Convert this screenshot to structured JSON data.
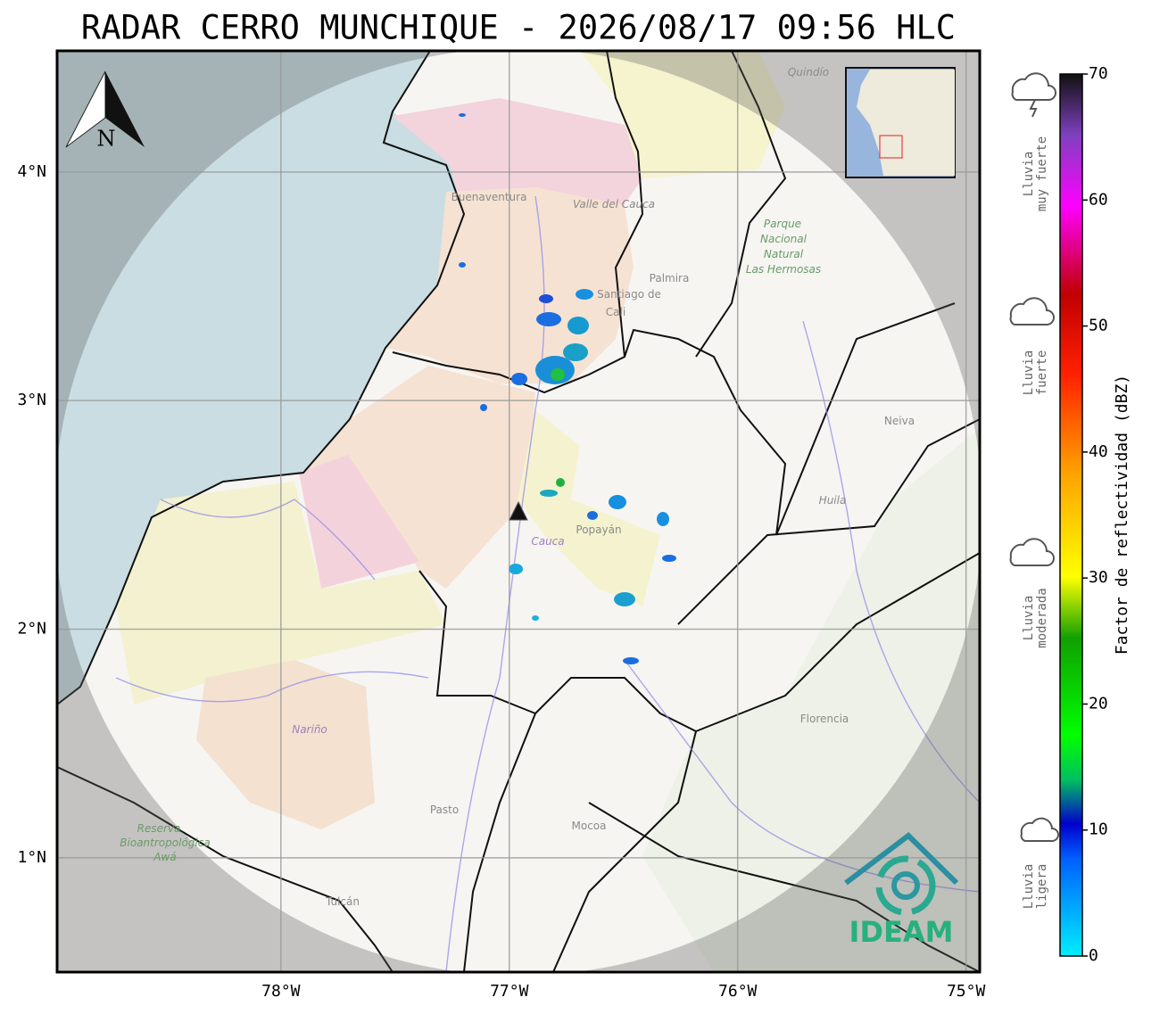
{
  "title": "RADAR CERRO MUNCHIQUE - 2026/08/17 09:56 HLC",
  "map": {
    "xlim": [
      -78.98,
      -74.94
    ],
    "ylim": [
      0.5,
      4.53
    ],
    "xticks": [
      {
        "value": -78,
        "label": "78°W"
      },
      {
        "value": -77,
        "label": "77°W"
      },
      {
        "value": -76,
        "label": "76°W"
      },
      {
        "value": -75,
        "label": "75°W"
      }
    ],
    "yticks": [
      {
        "value": 1,
        "label": "1°N"
      },
      {
        "value": 2,
        "label": "2°N"
      },
      {
        "value": 3,
        "label": "3°N"
      },
      {
        "value": 4,
        "label": "4°N"
      }
    ],
    "north_label": "N",
    "places": [
      {
        "lines": [
          "Buenaventura"
        ]
      },
      {
        "lines": [
          "Valle del Cauca"
        ]
      },
      {
        "lines": [
          "Palmira"
        ]
      },
      {
        "lines": [
          "Santiago de",
          "Cali"
        ]
      },
      {
        "lines": [
          "Parque",
          "Nacional",
          "Natural",
          "Las Hermosas"
        ]
      },
      {
        "lines": [
          "Neiva"
        ]
      },
      {
        "lines": [
          "Huila"
        ]
      },
      {
        "lines": [
          "Popayán"
        ]
      },
      {
        "lines": [
          "Cauca"
        ]
      },
      {
        "lines": [
          "Nariño"
        ]
      },
      {
        "lines": [
          "Pasto"
        ]
      },
      {
        "lines": [
          "Mocoa"
        ]
      },
      {
        "lines": [
          "Florencia"
        ]
      },
      {
        "lines": [
          "Tulcán"
        ]
      },
      {
        "lines": [
          "Reserva",
          "Bioantropológica",
          "Awá"
        ]
      },
      {
        "lines": [
          "Quindío"
        ]
      }
    ]
  },
  "colorbar": {
    "label": "Factor de reflectividad (dBZ)",
    "lim": [
      0,
      70
    ],
    "ticks": [
      0,
      10,
      20,
      30,
      40,
      50,
      60,
      70
    ]
  },
  "legend": [
    {
      "lines": [
        "Lluvia",
        "ligera"
      ]
    },
    {
      "lines": [
        "Lluvia",
        "moderada"
      ]
    },
    {
      "lines": [
        "Lluvia",
        "fuerte"
      ]
    },
    {
      "lines": [
        "Lluvia",
        "muy fuerte"
      ]
    }
  ],
  "logo": "IDEAM"
}
